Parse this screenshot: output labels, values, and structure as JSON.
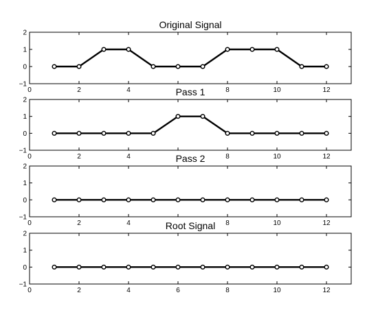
{
  "chart_data": [
    {
      "type": "line",
      "title": "Original Signal",
      "x": [
        1,
        2,
        3,
        4,
        5,
        6,
        7,
        8,
        9,
        10,
        11,
        12
      ],
      "y": [
        0,
        0,
        1,
        1,
        0,
        0,
        0,
        1,
        1,
        1,
        0,
        0
      ],
      "xlim": [
        0,
        13
      ],
      "ylim": [
        -1,
        2
      ],
      "xticks": [
        0,
        2,
        4,
        6,
        8,
        10,
        12
      ],
      "xtick_labels": [
        "0",
        "2",
        "4",
        "",
        "8",
        "10",
        "12"
      ],
      "yticks": [
        -1,
        0,
        1,
        2
      ],
      "ytick_labels": [
        "−1",
        "0",
        "1",
        "2"
      ],
      "marker": "circle",
      "grid": false,
      "color": "#000000"
    },
    {
      "type": "line",
      "title": "Pass 1",
      "x": [
        1,
        2,
        3,
        4,
        5,
        6,
        7,
        8,
        9,
        10,
        11,
        12
      ],
      "y": [
        0,
        0,
        0,
        0,
        0,
        1,
        1,
        0,
        0,
        0,
        0,
        0
      ],
      "xlim": [
        0,
        13
      ],
      "ylim": [
        -1,
        2
      ],
      "xticks": [
        0,
        2,
        4,
        6,
        8,
        10,
        12
      ],
      "xtick_labels": [
        "0",
        "2",
        "4",
        "",
        "8",
        "10",
        "12"
      ],
      "yticks": [
        -1,
        0,
        1,
        2
      ],
      "ytick_labels": [
        "−1",
        "0",
        "1",
        "2"
      ],
      "marker": "circle",
      "grid": false,
      "color": "#000000"
    },
    {
      "type": "line",
      "title": "Pass 2",
      "x": [
        1,
        2,
        3,
        4,
        5,
        6,
        7,
        8,
        9,
        10,
        11,
        12
      ],
      "y": [
        0,
        0,
        0,
        0,
        0,
        0,
        0,
        0,
        0,
        0,
        0,
        0
      ],
      "xlim": [
        0,
        13
      ],
      "ylim": [
        -1,
        2
      ],
      "xticks": [
        0,
        2,
        4,
        6,
        8,
        10,
        12
      ],
      "xtick_labels": [
        "0",
        "2",
        "4",
        "",
        "8",
        "10",
        "12"
      ],
      "yticks": [
        -1,
        0,
        1,
        2
      ],
      "ytick_labels": [
        "−1",
        "0",
        "1",
        "2"
      ],
      "marker": "circle",
      "grid": false,
      "color": "#000000"
    },
    {
      "type": "line",
      "title": "Root Signal",
      "x": [
        1,
        2,
        3,
        4,
        5,
        6,
        7,
        8,
        9,
        10,
        11,
        12
      ],
      "y": [
        0,
        0,
        0,
        0,
        0,
        0,
        0,
        0,
        0,
        0,
        0,
        0
      ],
      "xlim": [
        0,
        13
      ],
      "ylim": [
        -1,
        2
      ],
      "xticks": [
        0,
        2,
        4,
        6,
        8,
        10,
        12
      ],
      "xtick_labels": [
        "0",
        "2",
        "4",
        "6",
        "8",
        "10",
        "12"
      ],
      "yticks": [
        -1,
        0,
        1,
        2
      ],
      "ytick_labels": [
        "−1",
        "0",
        "1",
        "2"
      ],
      "marker": "circle",
      "grid": false,
      "color": "#000000"
    }
  ]
}
